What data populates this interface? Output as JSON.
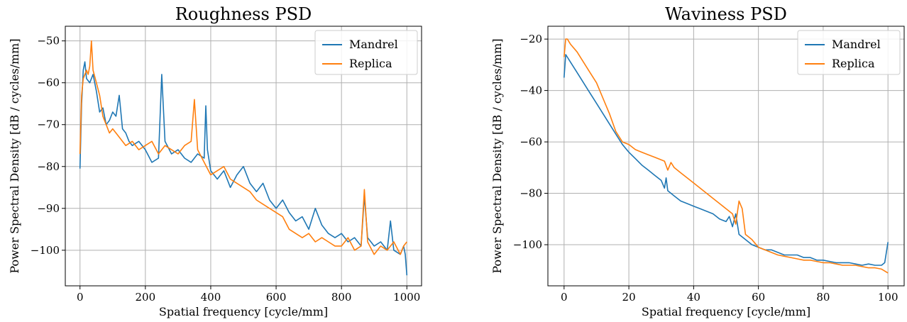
{
  "chart_data": [
    {
      "type": "line",
      "title": "Roughness PSD",
      "xlabel": "Spatial frequency [cycle/mm]",
      "ylabel": "Power Spectral Density [dB / cycles/mm]",
      "xlim": [
        -45,
        1045
      ],
      "ylim": [
        -108.5,
        -46.5
      ],
      "xticks": [
        0,
        200,
        400,
        600,
        800,
        1000
      ],
      "yticks": [
        -100,
        -90,
        -80,
        -70,
        -60,
        -50
      ],
      "grid": true,
      "legend": "top-right",
      "series": [
        {
          "name": "Mandrel",
          "color": "#1f77b4",
          "x": [
            0,
            5,
            10,
            15,
            20,
            30,
            40,
            50,
            60,
            70,
            80,
            90,
            100,
            110,
            120,
            130,
            140,
            150,
            160,
            180,
            200,
            220,
            240,
            250,
            260,
            280,
            300,
            320,
            340,
            360,
            380,
            385,
            390,
            400,
            420,
            440,
            460,
            480,
            500,
            520,
            540,
            560,
            580,
            600,
            620,
            640,
            660,
            680,
            700,
            720,
            740,
            760,
            780,
            800,
            820,
            840,
            860,
            870,
            880,
            900,
            920,
            940,
            950,
            960,
            980,
            990,
            995,
            1000
          ],
          "y": [
            -80.5,
            -65,
            -57,
            -55,
            -59,
            -60,
            -58,
            -62,
            -67,
            -66,
            -70,
            -69,
            -67,
            -68,
            -63,
            -71,
            -72,
            -74,
            -75,
            -74,
            -76,
            -79,
            -78,
            -58,
            -74,
            -77,
            -76,
            -78,
            -79,
            -77,
            -78,
            -65.5,
            -76,
            -81,
            -83,
            -81,
            -85,
            -82,
            -80,
            -84,
            -86,
            -84,
            -88,
            -90,
            -88,
            -91,
            -93,
            -92,
            -95,
            -90,
            -94,
            -96,
            -97,
            -96,
            -98,
            -97,
            -99,
            -87,
            -97,
            -99,
            -98,
            -100,
            -93,
            -100,
            -101,
            -99,
            -101,
            -106
          ]
        },
        {
          "name": "Replica",
          "color": "#ff7f0e",
          "x": [
            0,
            5,
            10,
            15,
            20,
            25,
            30,
            35,
            40,
            50,
            60,
            70,
            80,
            90,
            100,
            120,
            140,
            160,
            180,
            200,
            220,
            240,
            260,
            280,
            300,
            320,
            340,
            350,
            360,
            380,
            400,
            420,
            440,
            460,
            480,
            500,
            520,
            540,
            560,
            580,
            600,
            620,
            640,
            660,
            680,
            700,
            720,
            740,
            760,
            780,
            800,
            820,
            840,
            860,
            870,
            880,
            900,
            920,
            940,
            960,
            980,
            990,
            1000
          ],
          "y": [
            -77,
            -63,
            -59,
            -58,
            -57,
            -58,
            -56,
            -50,
            -57,
            -60,
            -63,
            -68,
            -70,
            -72,
            -71,
            -73,
            -75,
            -74,
            -76,
            -75,
            -74,
            -77,
            -75,
            -76,
            -77,
            -75,
            -74,
            -64,
            -76,
            -79,
            -82,
            -81,
            -80,
            -83,
            -84,
            -85,
            -86,
            -88,
            -89,
            -90,
            -91,
            -92,
            -95,
            -96,
            -97,
            -96,
            -98,
            -97,
            -98,
            -99,
            -99,
            -97,
            -100,
            -99,
            -85.5,
            -98,
            -101,
            -99,
            -100,
            -98,
            -101,
            -99,
            -98
          ]
        }
      ]
    },
    {
      "type": "line",
      "title": "Waviness PSD",
      "xlabel": "Spatial frequency [cycle/mm]",
      "ylabel": "Power Spectral Density [dB / cycles/mm]",
      "xlim": [
        -5,
        105
      ],
      "ylim": [
        -116,
        -15
      ],
      "xticks": [
        0,
        20,
        40,
        60,
        80,
        100
      ],
      "yticks": [
        -100,
        -80,
        -60,
        -40,
        -20
      ],
      "grid": true,
      "legend": "top-right",
      "series": [
        {
          "name": "Mandrel",
          "color": "#1f77b4",
          "x": [
            0,
            0.5,
            1,
            2,
            4,
            6,
            8,
            10,
            12,
            14,
            16,
            18,
            20,
            22,
            24,
            26,
            28,
            30,
            31,
            31.5,
            32,
            34,
            36,
            38,
            40,
            42,
            44,
            46,
            48,
            50,
            51,
            52,
            53,
            54,
            56,
            58,
            60,
            62,
            64,
            66,
            68,
            70,
            72,
            74,
            76,
            78,
            80,
            82,
            84,
            86,
            88,
            90,
            92,
            94,
            96,
            98,
            99,
            99.5,
            100
          ],
          "y": [
            -35,
            -26,
            -27,
            -29,
            -33,
            -37,
            -41,
            -45,
            -49,
            -53,
            -57,
            -61,
            -64,
            -66.5,
            -69,
            -71,
            -73,
            -75,
            -78,
            -74,
            -79,
            -81,
            -83,
            -84,
            -85,
            -86,
            -87,
            -88,
            -90,
            -91,
            -89,
            -93,
            -88,
            -96,
            -98,
            -100,
            -101,
            -102,
            -102,
            -103,
            -104,
            -104,
            -104,
            -105,
            -105,
            -106,
            -106,
            -106.5,
            -107,
            -107,
            -107,
            -107.5,
            -108,
            -107.5,
            -108,
            -108,
            -107,
            -103,
            -99
          ]
        },
        {
          "name": "Replica",
          "color": "#ff7f0e",
          "x": [
            0,
            0.5,
            1,
            2,
            4,
            6,
            8,
            10,
            12,
            14,
            16,
            18,
            20,
            22,
            24,
            26,
            28,
            30,
            31,
            32,
            33,
            34,
            36,
            38,
            40,
            42,
            44,
            46,
            48,
            50,
            52,
            53,
            54,
            55,
            56,
            58,
            60,
            62,
            64,
            66,
            68,
            70,
            72,
            74,
            76,
            78,
            80,
            82,
            84,
            86,
            88,
            90,
            92,
            94,
            96,
            98,
            100
          ],
          "y": [
            -27,
            -20,
            -20,
            -22,
            -25,
            -29,
            -33,
            -37,
            -43,
            -49,
            -56,
            -60,
            -61,
            -63,
            -64,
            -65,
            -66,
            -67,
            -67.5,
            -71,
            -68,
            -70,
            -72,
            -74,
            -76,
            -78,
            -80,
            -82,
            -84,
            -86,
            -88,
            -92,
            -83,
            -86,
            -96,
            -98,
            -101,
            -102,
            -103,
            -104,
            -104.5,
            -105,
            -105.5,
            -106,
            -106,
            -106.5,
            -107,
            -107,
            -107.5,
            -108,
            -108,
            -108,
            -108.5,
            -109,
            -109,
            -109.5,
            -111
          ]
        }
      ]
    }
  ]
}
